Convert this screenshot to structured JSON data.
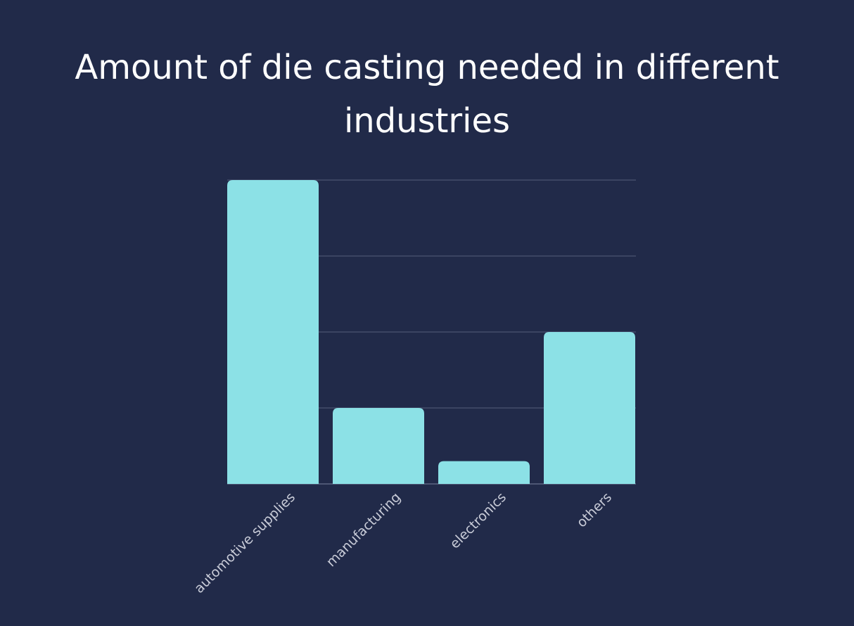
{
  "colors": {
    "background": "#212a49",
    "bar": "#8ce1e6",
    "grid": "#4b5472",
    "axis": "#5c6582",
    "text": "#ffffff",
    "tick_text": "#c9ccd8"
  },
  "chart_data": {
    "type": "bar",
    "title": "Amount of die casting needed in different industries",
    "categories": [
      "automotive supplies",
      "manufacturing",
      "electronics",
      "others"
    ],
    "values": [
      100,
      25,
      7.5,
      50
    ],
    "xlabel": "",
    "ylabel": "",
    "ylim": [
      0,
      100
    ],
    "yticks": [
      0,
      25,
      50,
      75,
      100
    ],
    "grid": true,
    "legend": "none"
  }
}
